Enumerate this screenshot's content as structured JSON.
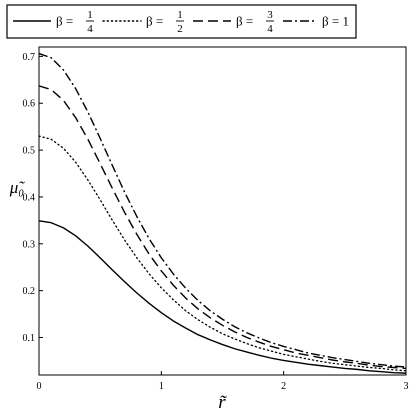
{
  "chart_data": {
    "type": "line",
    "title": "",
    "xlabel": "r̃",
    "ylabel": "μ̃₀",
    "xlim": [
      0,
      3
    ],
    "ylim": [
      0.02,
      0.72
    ],
    "x_ticks": [
      "0",
      "1",
      "2",
      "3"
    ],
    "y_ticks": [
      "0.1",
      "0.2",
      "0.3",
      "0.4",
      "0.5",
      "0.6",
      "0.7"
    ],
    "y_tick_values": [
      0.1,
      0.2,
      0.3,
      0.4,
      0.5,
      0.6,
      0.7
    ],
    "grid": false,
    "legend_position": "top",
    "x": [
      0,
      0.1,
      0.2,
      0.3,
      0.4,
      0.5,
      0.6,
      0.7,
      0.8,
      0.9,
      1.0,
      1.1,
      1.2,
      1.3,
      1.4,
      1.5,
      1.6,
      1.7,
      1.8,
      1.9,
      2.0,
      2.1,
      2.2,
      2.3,
      2.4,
      2.5,
      2.6,
      2.7,
      2.8,
      2.9,
      3.0
    ],
    "series": [
      {
        "name": "β = 1/4",
        "beta_num": "1",
        "beta_den": "4",
        "style": "solid",
        "values": [
          0.349,
          0.345,
          0.334,
          0.317,
          0.295,
          0.27,
          0.244,
          0.219,
          0.195,
          0.173,
          0.153,
          0.135,
          0.12,
          0.106,
          0.095,
          0.085,
          0.076,
          0.069,
          0.062,
          0.056,
          0.051,
          0.047,
          0.043,
          0.04,
          0.037,
          0.034,
          0.032,
          0.029,
          0.027,
          0.025,
          0.024
        ]
      },
      {
        "name": "β = 1/2",
        "beta_num": "1",
        "beta_den": "2",
        "style": "dotted",
        "values": [
          0.53,
          0.523,
          0.504,
          0.474,
          0.436,
          0.394,
          0.35,
          0.308,
          0.27,
          0.236,
          0.206,
          0.18,
          0.157,
          0.138,
          0.122,
          0.108,
          0.097,
          0.087,
          0.078,
          0.071,
          0.064,
          0.059,
          0.054,
          0.049,
          0.045,
          0.042,
          0.039,
          0.036,
          0.034,
          0.031,
          0.029
        ]
      },
      {
        "name": "β = 3/4",
        "beta_num": "3",
        "beta_den": "4",
        "style": "dashed",
        "values": [
          0.637,
          0.629,
          0.606,
          0.569,
          0.523,
          0.471,
          0.418,
          0.367,
          0.32,
          0.278,
          0.242,
          0.211,
          0.184,
          0.161,
          0.142,
          0.126,
          0.112,
          0.1,
          0.09,
          0.081,
          0.074,
          0.067,
          0.062,
          0.057,
          0.052,
          0.048,
          0.045,
          0.041,
          0.038,
          0.036,
          0.034
        ]
      },
      {
        "name": "β = 1",
        "beta_num": "1",
        "beta_den": "",
        "style": "dashdot",
        "values": [
          0.706,
          0.697,
          0.671,
          0.631,
          0.581,
          0.525,
          0.467,
          0.41,
          0.358,
          0.311,
          0.27,
          0.235,
          0.205,
          0.179,
          0.157,
          0.139,
          0.123,
          0.11,
          0.099,
          0.089,
          0.081,
          0.074,
          0.067,
          0.062,
          0.057,
          0.053,
          0.049,
          0.045,
          0.042,
          0.039,
          0.037
        ]
      }
    ]
  }
}
